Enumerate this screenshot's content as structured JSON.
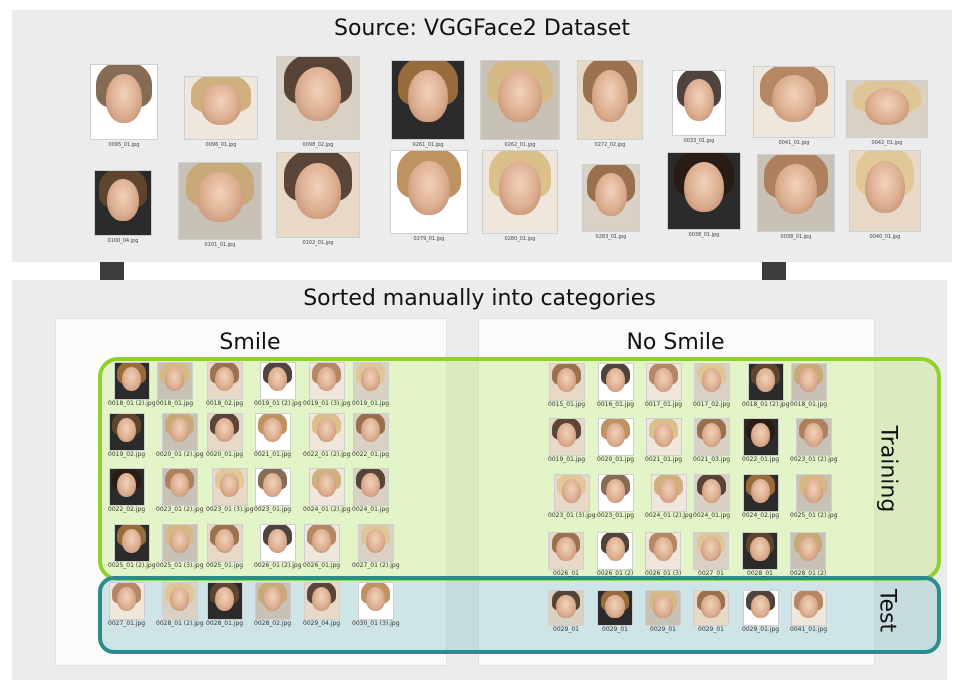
{
  "source": {
    "title": "Source: VGGFace2 Dataset",
    "captions": [
      "0095_01.jpg",
      "0096_01.jpg",
      "0098_02.jpg",
      "0261_01.jpg",
      "0262_01.jpg",
      "0272_02.jpg",
      "0033_01.jpg",
      "0041_01.jpg",
      "0042_01.jpg",
      "0100_04.jpg",
      "0101_01.jpg",
      "0102_01.jpg",
      "0279_01.jpg",
      "0280_01.jpg",
      "0283_01.jpg",
      "0038_01.jpg",
      "0038_01.jpg",
      "0040_01.jpg"
    ]
  },
  "sorted": {
    "title": "Sorted manually into categories"
  },
  "smile": {
    "title": "Smile",
    "training_labels": [
      "0018_01 (2).jpg",
      "0018_01.jpg",
      "0018_02.jpg",
      "0019_01 (2).jpg",
      "0019_01 (3).jpg",
      "0019_01.jpg",
      "0019_02.jpg",
      "0020_01 (2).jpg",
      "0020_01.jpg",
      "0021_01.jpg",
      "0022_01 (2).jpg",
      "0022_01.jpg",
      "0022_02.jpg",
      "0023_01 (2).jpg",
      "0023_01 (3).jpg",
      "0023_01.jpg",
      "0024_01 (2).jpg",
      "0024_01.jpg",
      "0025_01 (2).jpg",
      "0025_01 (3).jpg",
      "0025_01.jpg",
      "0026_01 (2).jpg",
      "0026_01.jpg",
      "0027_01 (2).jpg"
    ],
    "test_labels": [
      "0027_01.jpg",
      "0028_01 (2).jpg",
      "0028_01.jpg",
      "0028_02.jpg",
      "0029_04.jpg",
      "0030_01 (3).jpg"
    ]
  },
  "nosmile": {
    "title": "No Smile",
    "training_labels": [
      "0015_01.jpg",
      "0016_01.jpg",
      "0017_01.jpg",
      "0017_02.jpg",
      "0018_01 (2).jpg",
      "0018_01.jpg",
      "0019_01.jpg",
      "0020_01.jpg",
      "0021_01.jpg",
      "0021_03.jpg",
      "0022_01.jpg",
      "0023_01 (2).jpg",
      "0023_01 (3).jpg",
      "0023_01.jpg",
      "0024_01 (2).jpg",
      "0024_01.jpg",
      "0024_02.jpg",
      "0025_01 (2).jpg",
      "0026_01",
      "0026_01 (2)",
      "0026_01 (3)",
      "0027_01",
      "0028_01",
      "0028_01 (2)"
    ],
    "test_labels": [
      "0029_01",
      "0029_01",
      "0029_01",
      "0029_01",
      "0029_01.jpg",
      "0041_01.jpg"
    ]
  },
  "groups": {
    "training": "Training",
    "test": "Test"
  },
  "colors": {
    "panel": "#ececec",
    "training_border": "#8ed12d",
    "training_fill": "#e1f3bf",
    "test_border": "#2a8c8c",
    "test_fill": "#c9e4e4",
    "arrow": "#3d3d3d"
  }
}
